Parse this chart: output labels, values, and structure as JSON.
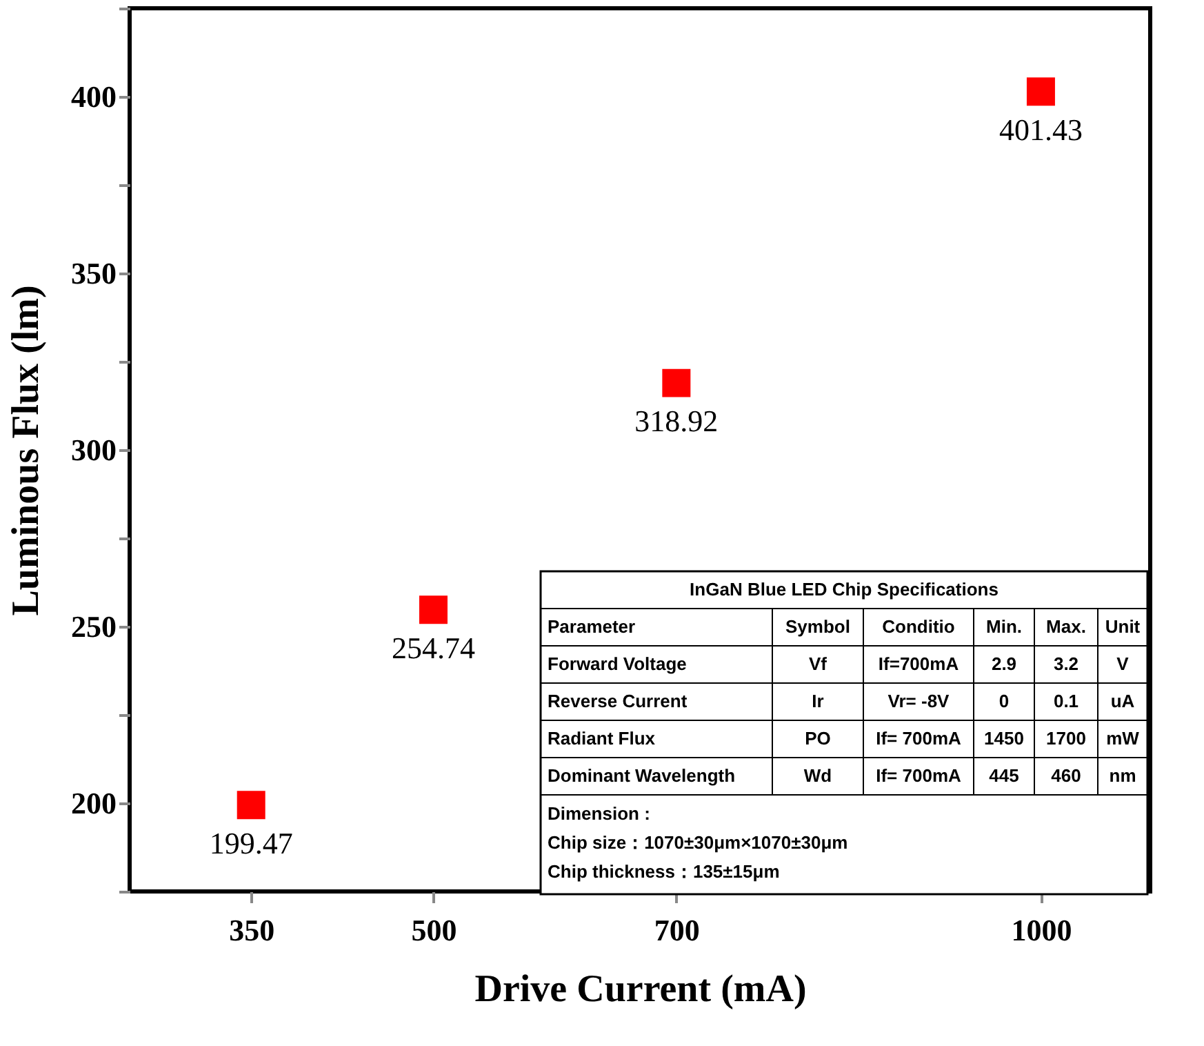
{
  "chart_data": {
    "type": "scatter",
    "xlabel": "Drive Current (mA)",
    "ylabel": "Luminous Flux (lm)",
    "x": [
      350,
      500,
      700,
      1000
    ],
    "values": [
      199.47,
      254.74,
      318.92,
      401.43
    ],
    "color": "#ff0000",
    "marker": "square",
    "data_labels": true,
    "xlim": [
      250,
      1090
    ],
    "xticks": [
      350,
      500,
      700,
      1000
    ],
    "ylim": [
      175,
      425
    ],
    "yticks": [
      {
        "value": 175,
        "label": null
      },
      200,
      {
        "value": 225,
        "label": null
      },
      250,
      {
        "value": 275,
        "label": null
      },
      300,
      {
        "value": 325,
        "label": null
      },
      350,
      {
        "value": 375,
        "label": null
      },
      400,
      {
        "value": 425,
        "label": null
      }
    ],
    "grid": false,
    "annotations": [
      "InGaN Blue LED Chip Specifications",
      "Parameter",
      "Symbol",
      "Conditio",
      "Min.",
      "Max.",
      "Unit",
      "Forward Voltage",
      "Vf",
      "If=700mA",
      "2.9",
      "3.2",
      "V",
      "Reverse Current",
      "Ir",
      "Vr= -8V",
      "0",
      "0.1",
      "uA",
      "Radiant Flux",
      "PO",
      "If= 700mA",
      "1450",
      "1700",
      "mW",
      "Dominant Wavelength",
      "Wd",
      "If= 700mA",
      "445",
      "460",
      "nm",
      "Dimension :",
      "Chip size：1070±30μm×1070±30μm",
      "Chip thickness：135±15μm"
    ]
  }
}
